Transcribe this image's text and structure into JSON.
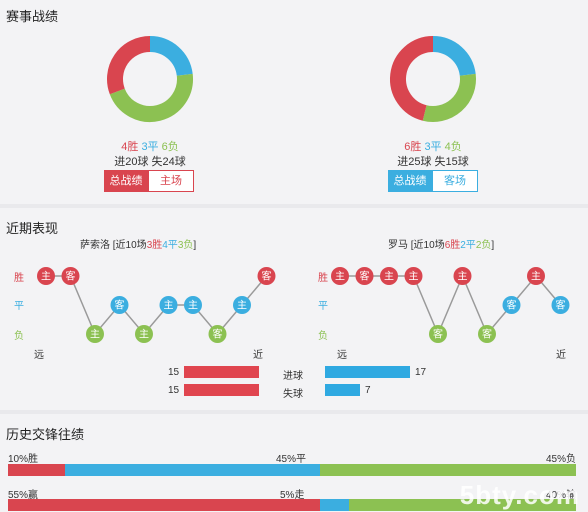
{
  "record": {
    "title": "赛事战绩",
    "home": {
      "win_label": "4胜",
      "draw_label": "3平",
      "loss_label": "6负",
      "win": 4,
      "draw": 3,
      "loss": 6,
      "goals_line": "进20球 失24球",
      "tab_total": "总战绩",
      "tab_venue": "主场"
    },
    "away": {
      "win_label": "6胜",
      "draw_label": "3平",
      "loss_label": "4负",
      "win": 6,
      "draw": 3,
      "loss": 4,
      "goals_line": "进25球 失15球",
      "tab_total": "总战绩",
      "tab_venue": "客场"
    },
    "colors": {
      "win": "#d9454f",
      "draw": "#3baee0",
      "loss": "#8cc152"
    }
  },
  "recent": {
    "title": "近期表现",
    "home": {
      "team": "萨索洛",
      "summary_pre": " [近10场",
      "w": "3胜",
      "d": "4平",
      "l": "3负",
      "summary_post": "]",
      "results": [
        "W",
        "W",
        "L",
        "D",
        "L",
        "D",
        "D",
        "L",
        "D",
        "W"
      ],
      "venues": [
        "主",
        "客",
        "主",
        "客",
        "主",
        "主",
        "主",
        "客",
        "主",
        "客"
      ]
    },
    "away": {
      "team": "罗马",
      "summary_pre": " [近10场",
      "w": "6胜",
      "d": "2平",
      "l": "2负",
      "summary_post": "]",
      "results": [
        "W",
        "W",
        "W",
        "W",
        "L",
        "W",
        "L",
        "D",
        "W",
        "D"
      ],
      "venues": [
        "主",
        "客",
        "主",
        "主",
        "客",
        "主",
        "客",
        "客",
        "主",
        "客"
      ]
    },
    "axis": {
      "win": "胜",
      "draw": "平",
      "loss": "负",
      "far": "远",
      "near": "近"
    },
    "goals": {
      "scored_label": "进球",
      "conceded_label": "失球",
      "home_scored": 15,
      "home_conceded": 15,
      "away_scored": 17,
      "away_conceded": 7
    }
  },
  "history": {
    "title": "历史交锋往绩",
    "row1": {
      "left": "10%胜",
      "mid": "45%平",
      "right": "45%负",
      "win": 10,
      "draw": 45,
      "loss": 45
    },
    "row2": {
      "left": "55%赢",
      "mid": "5%走",
      "right": "40%输",
      "win": 55,
      "draw": 5,
      "loss": 40
    }
  },
  "watermark": "5bty.com"
}
